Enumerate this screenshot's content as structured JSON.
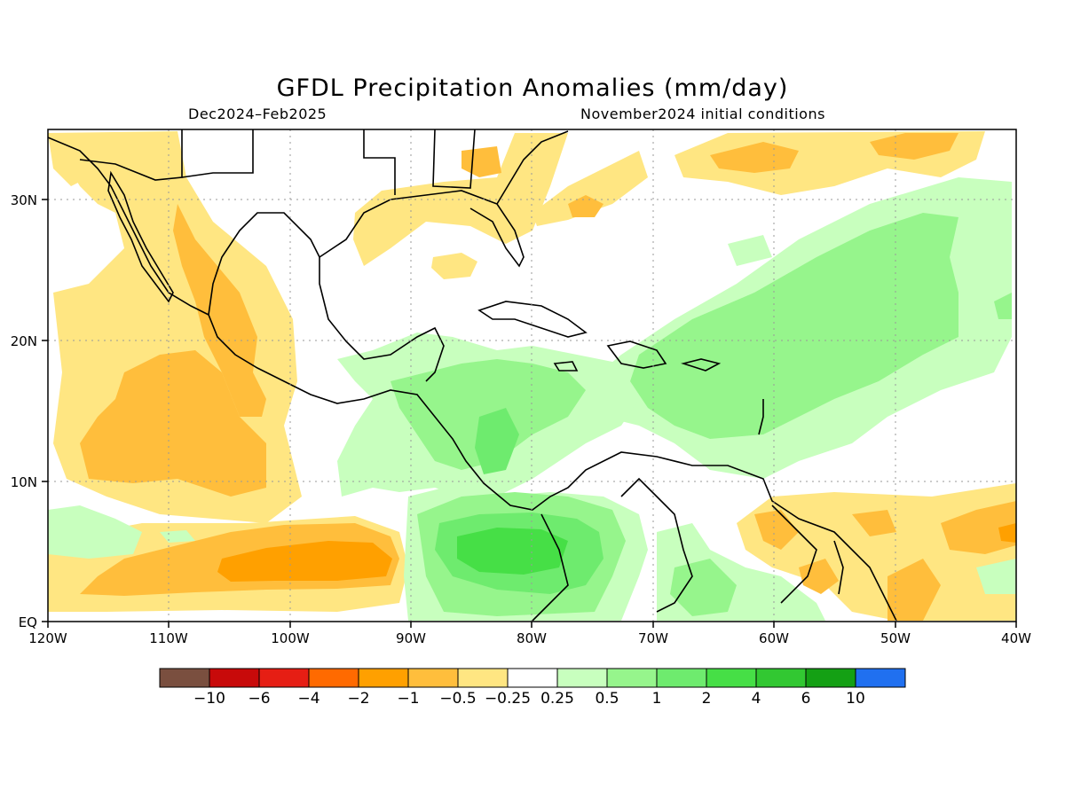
{
  "title": "GFDL Precipitation Anomalies (mm/day)",
  "season": "Dec2024–Feb2025",
  "init": "November2024 initial conditions",
  "axes": {
    "x_ticks": [
      "120W",
      "110W",
      "100W",
      "90W",
      "80W",
      "70W",
      "60W",
      "50W",
      "40W"
    ],
    "y_ticks": [
      "EQ",
      "10N",
      "20N",
      "30N"
    ]
  },
  "colorbar": {
    "colors": [
      "#7a4f3f",
      "#c80a0a",
      "#e61e14",
      "#ff6a00",
      "#ffa000",
      "#ffbe3c",
      "#ffe682",
      "#ffffff",
      "#c8ffbe",
      "#96f58c",
      "#6eeb6e",
      "#46df46",
      "#32c832",
      "#14a014",
      "#2070f0"
    ],
    "labels": [
      "−10",
      "−6",
      "−4",
      "−2",
      "−1",
      "−0.5",
      "−0.25",
      "0.25",
      "0.5",
      "1",
      "2",
      "4",
      "6",
      "10"
    ]
  },
  "map": {
    "region": "Central America & Caribbean",
    "lon_range": [
      "120W",
      "40W"
    ],
    "lat_range": [
      "EQ",
      "35N"
    ]
  }
}
